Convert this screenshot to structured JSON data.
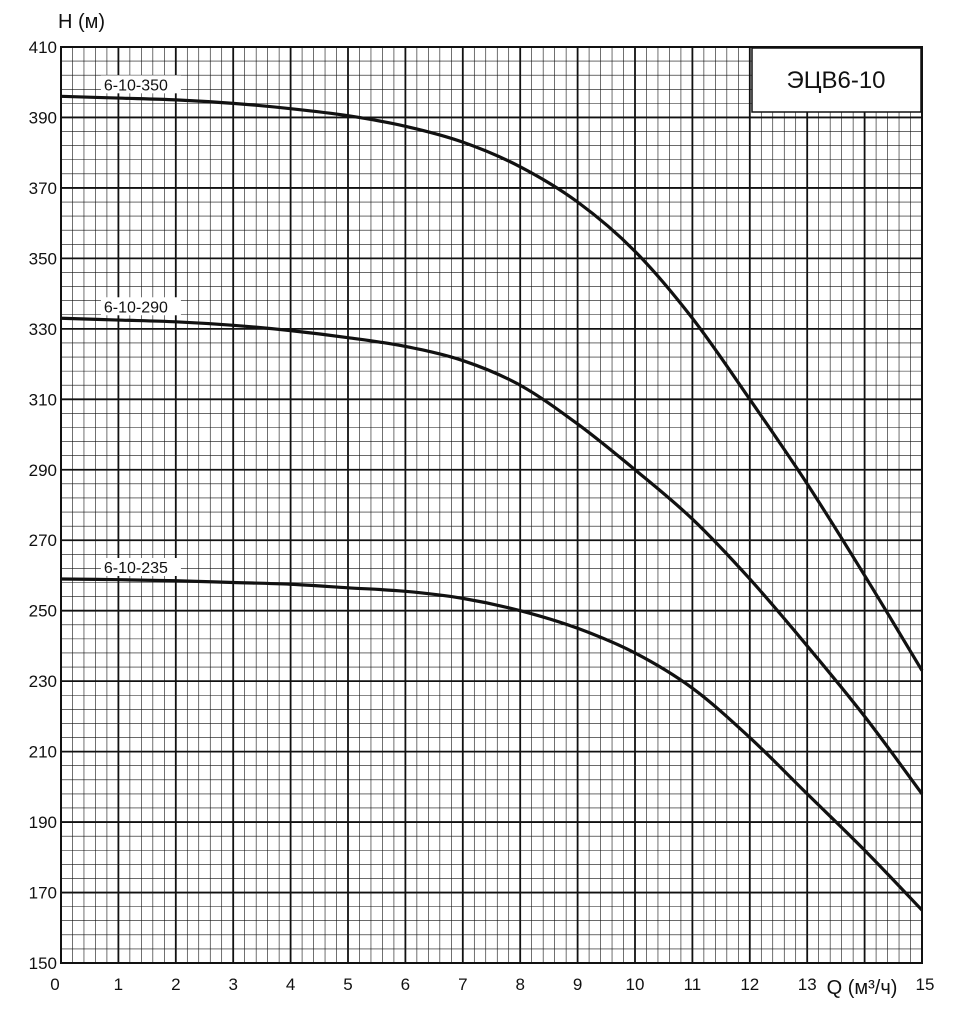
{
  "chart_data": {
    "type": "line",
    "title": "ЭЦВ6-10",
    "ylabel": "H (м)",
    "xlabel": "Q (м³/ч)",
    "xlim": [
      0,
      15
    ],
    "ylim": [
      150,
      410
    ],
    "x_ticks": [
      "0",
      "1",
      "2",
      "3",
      "4",
      "5",
      "6",
      "7",
      "8",
      "9",
      "10",
      "11",
      "12",
      "13",
      "14",
      "15"
    ],
    "y_ticks": [
      "150",
      "170",
      "190",
      "210",
      "230",
      "250",
      "270",
      "290",
      "310",
      "330",
      "350",
      "370",
      "390",
      "410"
    ],
    "grid": true,
    "series": [
      {
        "name": "6-10-350",
        "x": [
          0,
          1,
          2,
          3,
          4,
          5,
          6,
          7,
          8,
          9,
          10,
          11,
          12,
          13,
          14,
          15
        ],
        "y": [
          396,
          395.5,
          395,
          394,
          392.5,
          390.5,
          387.5,
          383,
          376,
          366,
          352,
          333,
          310,
          286,
          260,
          233
        ]
      },
      {
        "name": "6-10-290",
        "x": [
          0,
          1,
          2,
          3,
          4,
          5,
          6,
          7,
          8,
          9,
          10,
          11,
          12,
          13,
          14,
          15
        ],
        "y": [
          333,
          332.5,
          332,
          331,
          329.5,
          327.5,
          325,
          321,
          314,
          303,
          290,
          276,
          259,
          240,
          220,
          198
        ]
      },
      {
        "name": "6-10-235",
        "x": [
          0,
          1,
          2,
          3,
          4,
          5,
          6,
          7,
          8,
          9,
          10,
          11,
          12,
          13,
          14,
          15
        ],
        "y": [
          259,
          258.8,
          258.5,
          258,
          257.5,
          256.5,
          255.5,
          253.5,
          250,
          245,
          238,
          228,
          214,
          198,
          182,
          165
        ]
      }
    ]
  },
  "style": {
    "line_color": "#111111",
    "grid_color": "#111111",
    "background": "#ffffff"
  }
}
